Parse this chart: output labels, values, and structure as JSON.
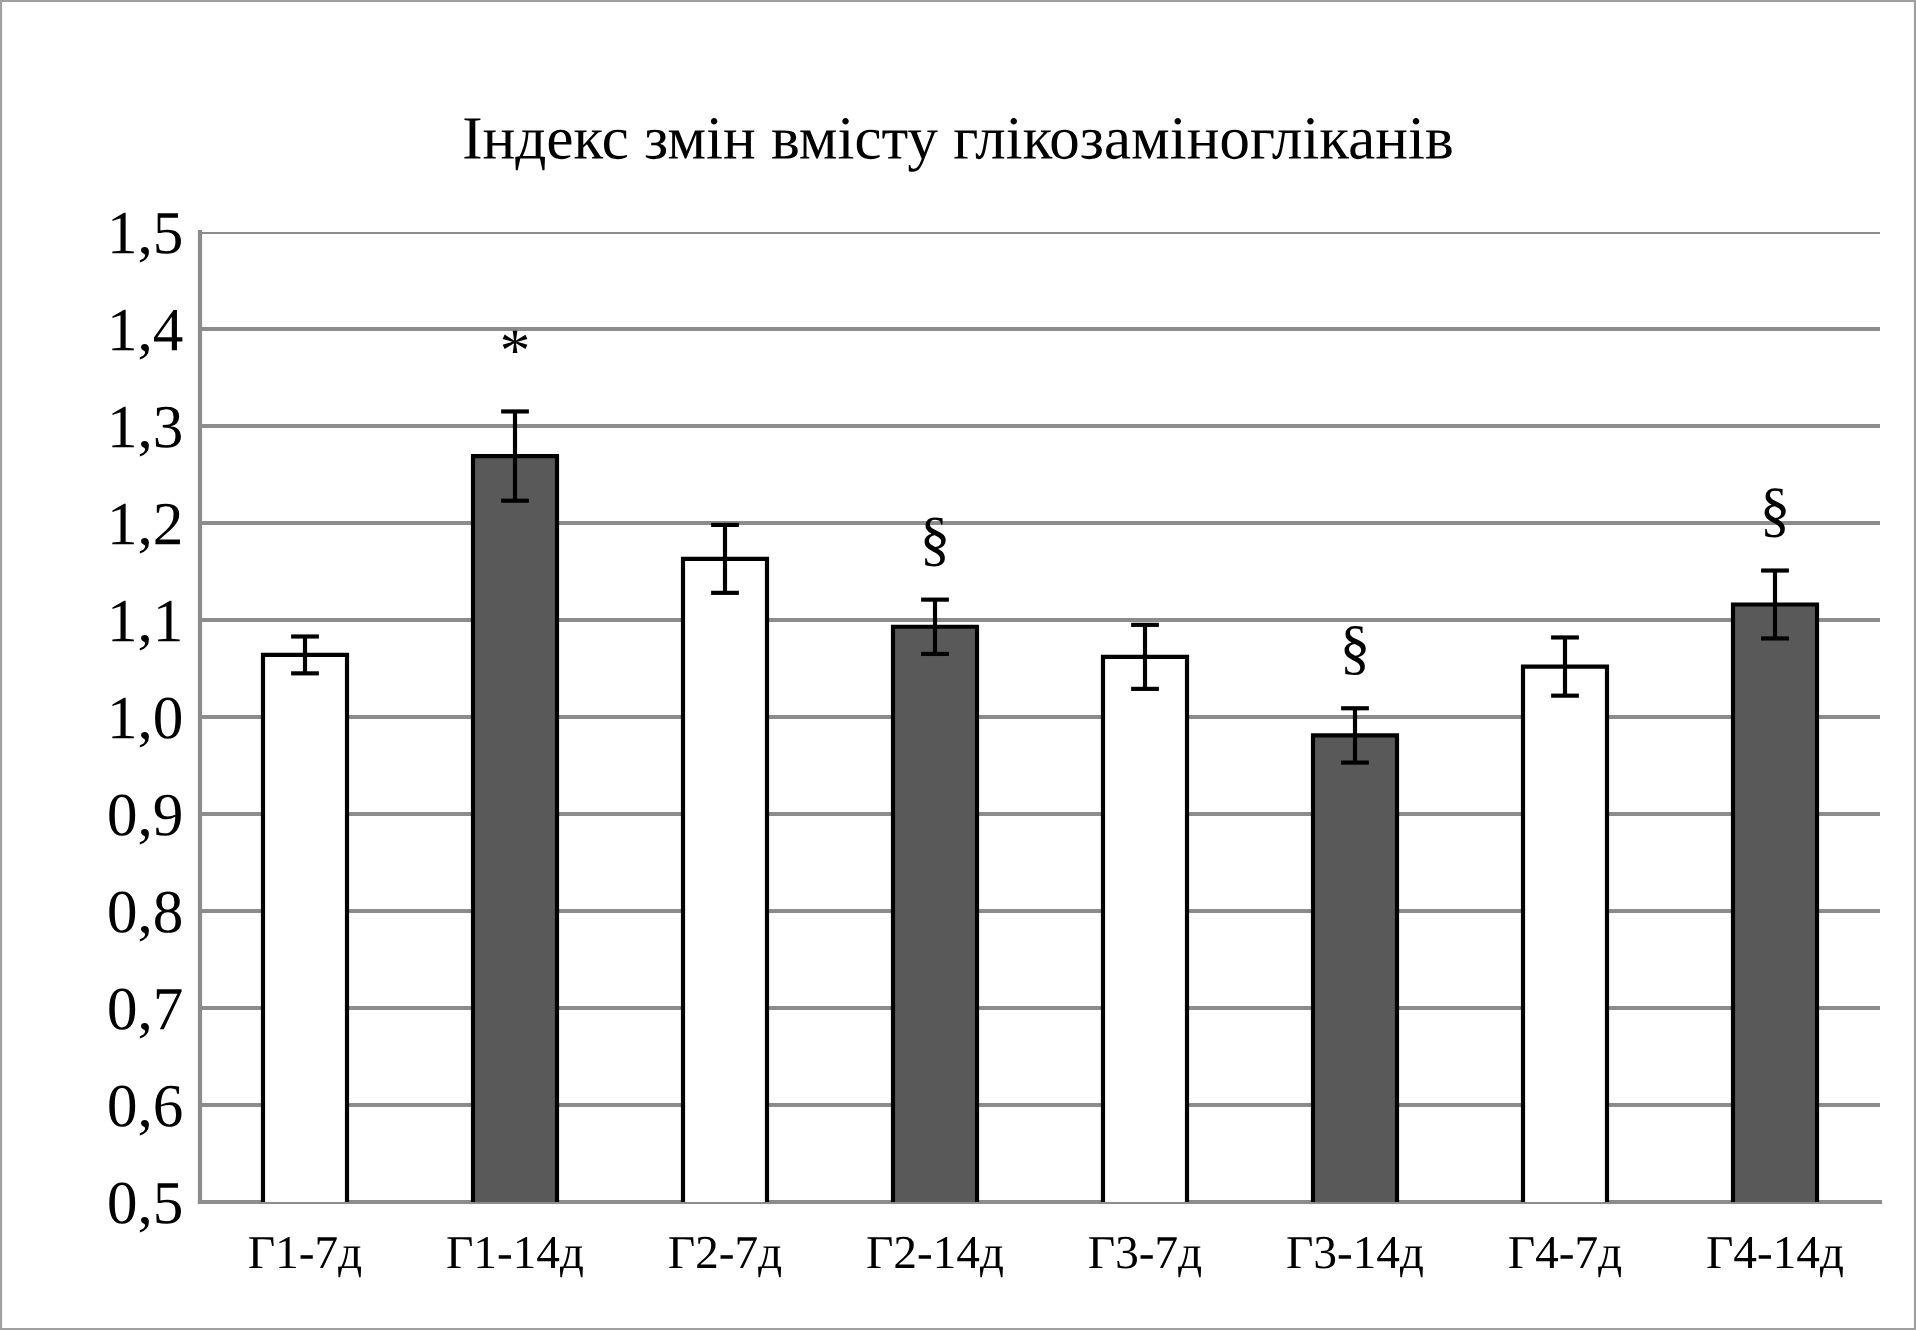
{
  "chart_data": {
    "type": "bar",
    "title": "Індекс змін вмісту глікозаміногліканів",
    "categories": [
      "Г1-7д",
      "Г1-14д",
      "Г2-7д",
      "Г2-14д",
      "Г3-7д",
      "Г3-14д",
      "Г4-7д",
      "Г4-14д"
    ],
    "values": [
      1.064,
      1.269,
      1.163,
      1.093,
      1.062,
      0.981,
      1.052,
      1.116
    ],
    "errors": [
      0.019,
      0.046,
      0.035,
      0.028,
      0.033,
      0.028,
      0.03,
      0.035
    ],
    "colors": [
      "#ffffff",
      "#595959",
      "#ffffff",
      "#595959",
      "#ffffff",
      "#595959",
      "#ffffff",
      "#595959"
    ],
    "ylim": [
      0.5,
      1.5
    ],
    "yticks": [
      {
        "value": 0.5,
        "label": "0,5"
      },
      {
        "value": 0.6,
        "label": "0,6"
      },
      {
        "value": 0.7,
        "label": "0,7"
      },
      {
        "value": 0.8,
        "label": "0,8"
      },
      {
        "value": 0.9,
        "label": "0,9"
      },
      {
        "value": 1.0,
        "label": "1,0"
      },
      {
        "value": 1.1,
        "label": "1,1"
      },
      {
        "value": 1.2,
        "label": "1,2"
      },
      {
        "value": 1.3,
        "label": "1,3"
      },
      {
        "value": 1.4,
        "label": "1,4"
      },
      {
        "value": 1.5,
        "label": "1,5"
      }
    ],
    "grid": "y",
    "value_labels": [
      null,
      "*",
      null,
      "§",
      null,
      "§",
      null,
      "§"
    ]
  }
}
